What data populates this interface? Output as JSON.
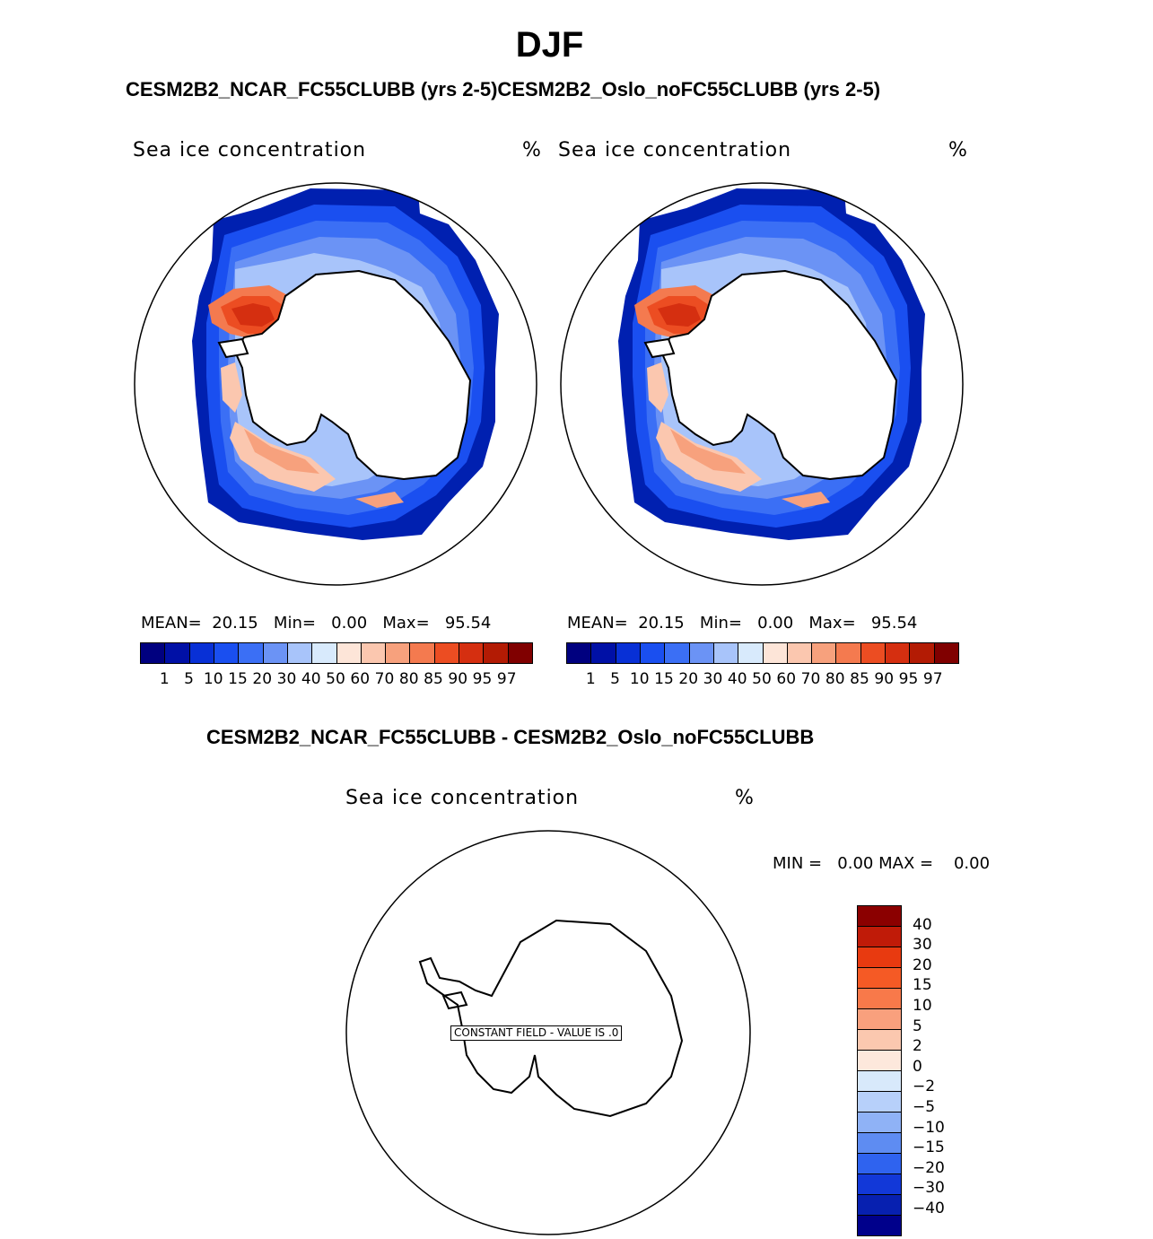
{
  "season": "DJF",
  "case_header": "CESM2B2_NCAR_FC55CLUBB (yrs 2-5)CESM2B2_Oslo_noFC55CLUBB (yrs 2-5)",
  "diff_header": "CESM2B2_NCAR_FC55CLUBB - CESM2B2_Oslo_noFC55CLUBB",
  "panels": [
    {
      "field": "Sea ice concentration",
      "units": "%",
      "mean_label": "MEAN=",
      "mean": "20.15",
      "min_label": "Min=",
      "min": "0.00",
      "max_label": "Max=",
      "max": "95.54"
    },
    {
      "field": "Sea ice concentration",
      "units": "%",
      "mean_label": "MEAN=",
      "mean": "20.15",
      "min_label": "Min=",
      "min": "0.00",
      "max_label": "Max=",
      "max": "95.54"
    }
  ],
  "abs_colorbar": {
    "colors": [
      "#00007f",
      "#0010a6",
      "#0830d6",
      "#1a4ff0",
      "#3b6ff5",
      "#6b93f5",
      "#a8c4fa",
      "#d8eafc",
      "#fde5d8",
      "#fbc7af",
      "#f7a17d",
      "#f47a4f",
      "#ec4d22",
      "#d52f10",
      "#b31b04",
      "#800000"
    ],
    "labels": [
      "1",
      "5",
      "10",
      "15",
      "20",
      "30",
      "40",
      "50",
      "60",
      "70",
      "80",
      "85",
      "90",
      "95",
      "97"
    ]
  },
  "diff_panel": {
    "field": "Sea ice concentration",
    "units": "%",
    "min_label": "MIN =",
    "min": "0.00",
    "max_label": "MAX =",
    "max": "0.00",
    "note": "CONSTANT FIELD - VALUE IS .0"
  },
  "diff_colorbar": {
    "colors": [
      "#8b0000",
      "#c01b08",
      "#e83a10",
      "#f55a25",
      "#f8794a",
      "#f9a07d",
      "#fbc8af",
      "#fde8dc",
      "#d8e9fb",
      "#b7d0fa",
      "#8fb2f6",
      "#5e8cf2",
      "#2f63ef",
      "#1238d8",
      "#0720b0",
      "#00008b"
    ],
    "labels": [
      "40",
      "30",
      "20",
      "15",
      "10",
      "5",
      "2",
      "0",
      "−2",
      "−5",
      "−10",
      "−15",
      "−20",
      "−30",
      "−40"
    ]
  }
}
